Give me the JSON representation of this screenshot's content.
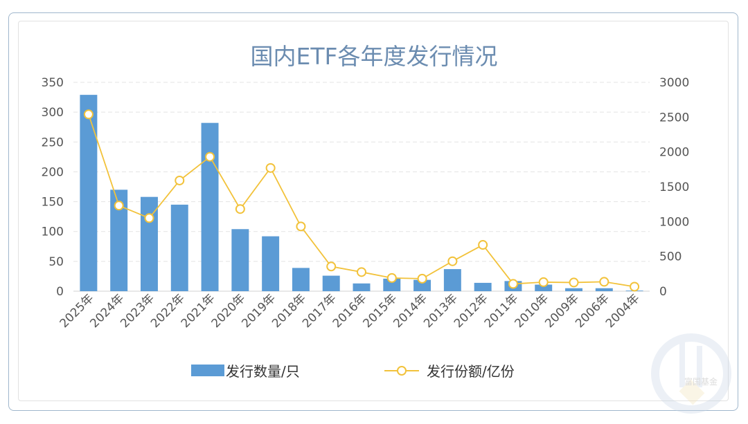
{
  "chart_data": {
    "type": "bar+line",
    "title": "国内ETF各年度发行情况",
    "categories": [
      "2025年",
      "2024年",
      "2023年",
      "2022年",
      "2021年",
      "2020年",
      "2019年",
      "2018年",
      "2017年",
      "2016年",
      "2015年",
      "2014年",
      "2013年",
      "2012年",
      "2011年",
      "2010年",
      "2009年",
      "2006年",
      "2004年"
    ],
    "series": [
      {
        "name": "发行数量/只",
        "type": "bar",
        "axis": "left",
        "values": [
          329,
          170,
          158,
          145,
          282,
          104,
          92,
          39,
          26,
          13,
          21,
          19,
          37,
          14,
          17,
          11,
          5,
          5,
          1
        ]
      },
      {
        "name": "发行份额/亿份",
        "type": "line",
        "axis": "right",
        "values": [
          2540,
          1230,
          1050,
          1590,
          1930,
          1180,
          1770,
          930,
          355,
          275,
          190,
          180,
          430,
          665,
          105,
          130,
          125,
          135,
          65
        ]
      }
    ],
    "y_left": {
      "ylim": [
        0,
        350
      ],
      "ticks": [
        "0",
        "50",
        "100",
        "150",
        "200",
        "250",
        "300",
        "350"
      ]
    },
    "y_right": {
      "ylim": [
        0,
        3000
      ],
      "ticks": [
        "0",
        "500",
        "1000",
        "1500",
        "2000",
        "2500",
        "3000"
      ]
    },
    "grid": "horizontal-dashed",
    "legend": "bottom",
    "colors": {
      "bar": "#5b9bd5",
      "line": "#f2c23a",
      "title": "#6b8cb0"
    }
  },
  "watermark": {
    "text": "富国基金"
  }
}
